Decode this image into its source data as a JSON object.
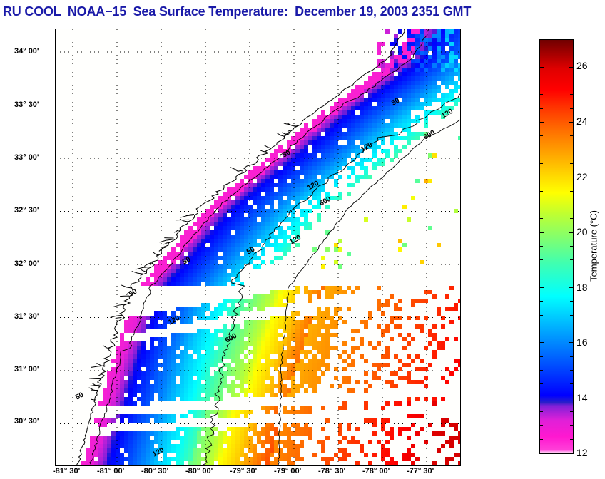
{
  "title": "RU COOL  NOAA−15  Sea Surface Temperature:  December 19, 2003 2351 GMT",
  "map": {
    "lat_labels": [
      "34° 00'",
      "33° 30'",
      "33° 00'",
      "32° 30'",
      "32° 00'",
      "31° 30'",
      "31° 00'",
      "30° 30'"
    ],
    "lon_labels": [
      "-81° 30'",
      "-81° 00'",
      "-80° 30'",
      "-80° 00'",
      "-79° 30'",
      "-79° 00'",
      "-78° 30'",
      "-78° 00'",
      "-77° 30'"
    ],
    "contour_labels": [
      "50",
      "50",
      "50",
      "50",
      "50",
      "50",
      "120",
      "120",
      "120",
      "120",
      "120",
      "120",
      "600",
      "600",
      "600"
    ],
    "isobaths_m": [
      50,
      120,
      600
    ]
  },
  "colorbar": {
    "label": "Temperature (°C)",
    "min": 12,
    "max": 27,
    "tick_labels": [
      "26",
      "24",
      "22",
      "20",
      "18",
      "16",
      "14",
      "12"
    ],
    "colors": [
      "#ffffff",
      "#ff00cc",
      "#ff20d0",
      "#a020e0",
      "#2020d0",
      "#0000ff",
      "#0060ff",
      "#00a8ff",
      "#00ffff",
      "#40ffa0",
      "#a0ff40",
      "#ffff00",
      "#ffc000",
      "#ff8000",
      "#ff4000",
      "#ff0000",
      "#d00000",
      "#700000"
    ]
  }
}
